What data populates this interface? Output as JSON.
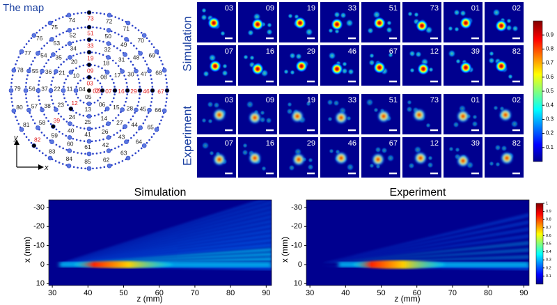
{
  "map": {
    "title": "The map",
    "center": "01",
    "rings": [
      [
        "03",
        "02",
        "05",
        "04"
      ],
      [
        "09",
        "08",
        "07",
        "06",
        "13",
        "12",
        "11",
        "10"
      ],
      [
        "19",
        "18",
        "17",
        "16",
        "15",
        "14",
        "25",
        "24",
        "23",
        "22",
        "21",
        "20"
      ],
      [
        "33",
        "32",
        "31",
        "30",
        "29",
        "28",
        "27",
        "26",
        "41",
        "40",
        "39",
        "38",
        "37",
        "36",
        "35",
        "34"
      ],
      [
        "51",
        "50",
        "49",
        "48",
        "47",
        "46",
        "45",
        "44",
        "43",
        "42",
        "61",
        "60",
        "59",
        "58",
        "57",
        "56",
        "55",
        "54",
        "53",
        "52"
      ],
      [
        "73",
        "72",
        "71",
        "70",
        "69",
        "68",
        "67",
        "66",
        "65",
        "64",
        "63",
        "62",
        "85",
        "84",
        "83",
        "82",
        "81",
        "80",
        "79",
        "78",
        "77",
        "76",
        "75",
        "74"
      ]
    ],
    "highlighted": [
      "01",
      "02",
      "03",
      "07",
      "09",
      "12",
      "16",
      "19",
      "29",
      "33",
      "39",
      "46",
      "51",
      "67",
      "73",
      "82"
    ],
    "y_axis": "y",
    "x_axis": "x"
  },
  "panels": [
    {
      "label": "Simulation",
      "rows": [
        [
          "03",
          "09",
          "19",
          "33",
          "51",
          "73",
          "01",
          "02"
        ],
        [
          "07",
          "16",
          "29",
          "46",
          "67",
          "12",
          "39",
          "82"
        ]
      ]
    },
    {
      "label": "Experiment",
      "rows": [
        [
          "03",
          "09",
          "19",
          "33",
          "51",
          "73",
          "01",
          "02"
        ],
        [
          "07",
          "16",
          "29",
          "46",
          "67",
          "12",
          "39",
          "82"
        ]
      ]
    }
  ],
  "colorbar": {
    "lim": [
      0,
      1
    ],
    "ticks": [
      0.1,
      0.2,
      0.3,
      0.4,
      0.5,
      0.6,
      0.7,
      0.8,
      0.9
    ]
  },
  "profiles": {
    "xlabel": "z (mm)",
    "ylabel": "x (mm)",
    "xlim": [
      29,
      91.5
    ],
    "ylim": [
      -34,
      11
    ],
    "xticks": [
      30,
      40,
      50,
      60,
      70,
      80,
      90
    ],
    "yticks": [
      -30,
      -20,
      -10,
      0,
      10
    ],
    "plots": [
      {
        "title": "Simulation"
      },
      {
        "title": "Experiment"
      }
    ],
    "colorbar": {
      "lim": [
        0,
        1
      ],
      "ticks": [
        0.1,
        0.2,
        0.3,
        0.4,
        0.5,
        0.6,
        0.7,
        0.8,
        0.9,
        1
      ]
    }
  }
}
